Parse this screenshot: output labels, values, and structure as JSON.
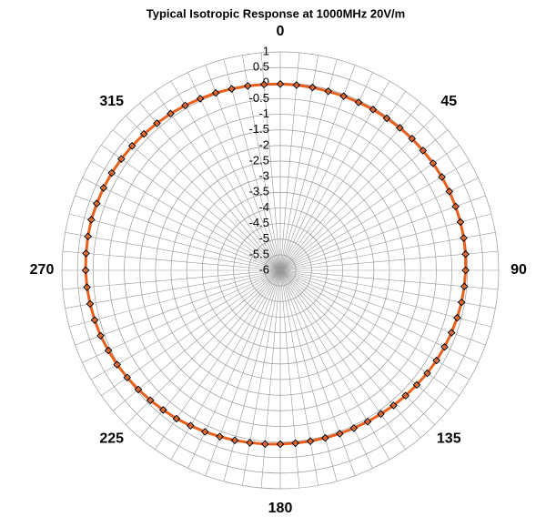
{
  "chart_data": {
    "type": "polar",
    "title": "Typical Isotropic Response at 1000MHz 20V/m",
    "x": [
      0,
      5,
      10,
      15,
      20,
      25,
      30,
      35,
      40,
      45,
      50,
      55,
      60,
      65,
      70,
      75,
      80,
      85,
      90,
      95,
      100,
      105,
      110,
      115,
      120,
      125,
      130,
      135,
      140,
      145,
      150,
      155,
      160,
      165,
      170,
      175,
      180,
      185,
      190,
      195,
      200,
      205,
      210,
      215,
      220,
      225,
      230,
      235,
      240,
      245,
      250,
      255,
      260,
      265,
      270,
      275,
      280,
      285,
      290,
      295,
      300,
      305,
      310,
      315,
      320,
      325,
      330,
      335,
      340,
      345,
      350,
      355
    ],
    "series": [
      {
        "color": "#e8601c",
        "marker_edge": "#000000",
        "values": [
          -0.03,
          -0.04,
          -0.05,
          -0.06,
          -0.06,
          -0.06,
          -0.05,
          -0.05,
          -0.04,
          -0.03,
          -0.03,
          -0.02,
          -0.02,
          -0.02,
          -0.02,
          -0.02,
          -0.03,
          -0.04,
          -0.06,
          -0.08,
          -0.1,
          -0.13,
          -0.16,
          -0.19,
          -0.22,
          -0.25,
          -0.29,
          -0.32,
          -0.35,
          -0.38,
          -0.4,
          -0.42,
          -0.43,
          -0.44,
          -0.44,
          -0.44,
          -0.43,
          -0.41,
          -0.39,
          -0.36,
          -0.33,
          -0.29,
          -0.25,
          -0.2,
          -0.16,
          -0.11,
          -0.06,
          -0.01,
          0.04,
          0.08,
          0.13,
          0.16,
          0.19,
          0.22,
          0.24,
          0.25,
          0.26,
          0.27,
          0.26,
          0.25,
          0.24,
          0.22,
          0.2,
          0.18,
          0.15,
          0.13,
          0.1,
          0.07,
          0.05,
          0.02,
          0.0,
          -0.02
        ]
      }
    ],
    "rlim": [
      -6,
      1
    ],
    "rticks": [
      -6,
      -5.5,
      -5,
      -4.5,
      -4,
      -3.5,
      -3,
      -2.5,
      -2,
      -1.5,
      -1,
      -0.5,
      0,
      0.5,
      1
    ],
    "theta_ticks": [
      0,
      45,
      90,
      135,
      180,
      225,
      270,
      315
    ],
    "grid": true,
    "grid_color": "#999999"
  }
}
